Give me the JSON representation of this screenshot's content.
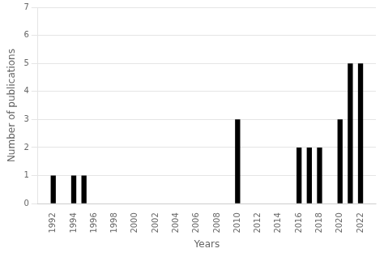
{
  "chart_data": {
    "type": "bar",
    "x": [
      1992,
      1993,
      1994,
      1995,
      1996,
      1997,
      1998,
      1999,
      2000,
      2001,
      2002,
      2003,
      2004,
      2005,
      2006,
      2007,
      2008,
      2009,
      2010,
      2011,
      2012,
      2013,
      2014,
      2015,
      2016,
      2017,
      2018,
      2019,
      2020,
      2021,
      2022
    ],
    "values": [
      1,
      0,
      1,
      1,
      0,
      0,
      0,
      0,
      0,
      0,
      0,
      0,
      0,
      0,
      0,
      0,
      0,
      0,
      3,
      0,
      0,
      0,
      0,
      0,
      2,
      2,
      2,
      0,
      3,
      5,
      5
    ],
    "xlabel": "Years",
    "ylabel": "Number of publications",
    "xlim": [
      1990.5,
      2023.5
    ],
    "xticks": [
      1992,
      1994,
      1996,
      1998,
      2000,
      2002,
      2004,
      2006,
      2008,
      2010,
      2012,
      2014,
      2016,
      2018,
      2020,
      2022
    ],
    "ylim": [
      0,
      7
    ],
    "yticks": [
      0,
      1,
      2,
      3,
      4,
      5,
      6,
      7
    ],
    "color": "#000000",
    "grid": "y"
  }
}
